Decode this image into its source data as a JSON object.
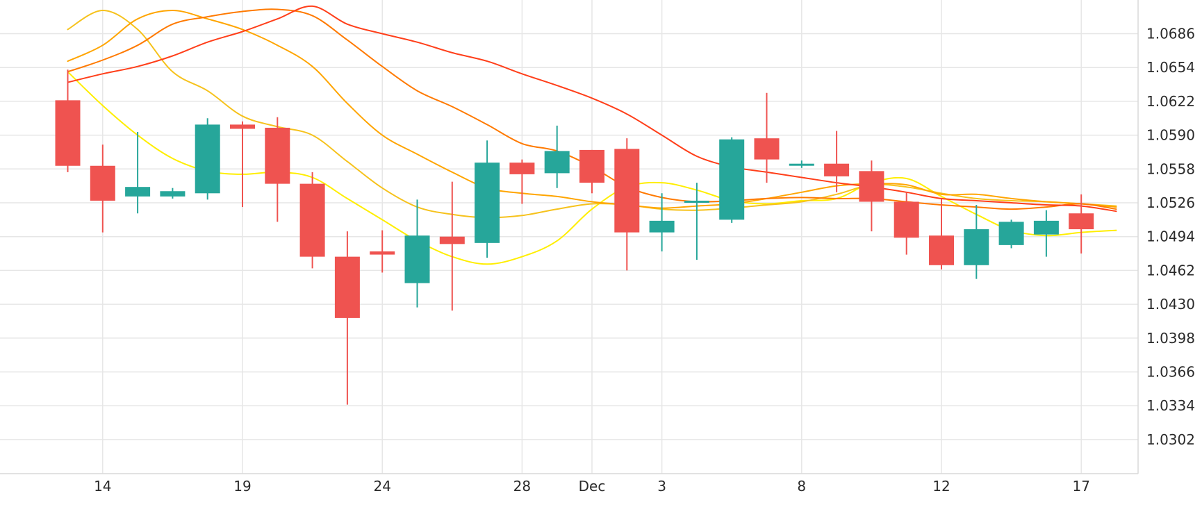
{
  "chart_data": {
    "type": "candlestick",
    "title": "",
    "xlabel": "",
    "ylabel": "",
    "ylim": [
      1.028,
      1.0712
    ],
    "y_ticks": [
      "1.0686",
      "1.0654",
      "1.0622",
      "1.0590",
      "1.0558",
      "1.0526",
      "1.0494",
      "1.0462",
      "1.0430",
      "1.0398",
      "1.0366",
      "1.0334",
      "1.0302"
    ],
    "x_ticks": [
      {
        "label": "14",
        "index": 1
      },
      {
        "label": "19",
        "index": 5
      },
      {
        "label": "24",
        "index": 9
      },
      {
        "label": "28",
        "index": 13
      },
      {
        "label": "Dec",
        "index": 15
      },
      {
        "label": "3",
        "index": 17
      },
      {
        "label": "8",
        "index": 21
      },
      {
        "label": "12",
        "index": 25
      },
      {
        "label": "17",
        "index": 29
      }
    ],
    "colors": {
      "up": "#26a69a",
      "down": "#ef5350",
      "grid": "#e6e6e6"
    },
    "candles": [
      {
        "open": 1.0623,
        "high": 1.0652,
        "low": 1.0555,
        "close": 1.0561
      },
      {
        "open": 1.0561,
        "high": 1.0581,
        "low": 1.0498,
        "close": 1.0528
      },
      {
        "open": 1.0532,
        "high": 1.0593,
        "low": 1.0516,
        "close": 1.0541
      },
      {
        "open": 1.0532,
        "high": 1.054,
        "low": 1.053,
        "close": 1.0537
      },
      {
        "open": 1.0535,
        "high": 1.0606,
        "low": 1.0529,
        "close": 1.06
      },
      {
        "open": 1.06,
        "high": 1.0603,
        "low": 1.0522,
        "close": 1.0596
      },
      {
        "open": 1.0597,
        "high": 1.0607,
        "low": 1.0508,
        "close": 1.0544
      },
      {
        "open": 1.0544,
        "high": 1.0555,
        "low": 1.0464,
        "close": 1.0475
      },
      {
        "open": 1.0475,
        "high": 1.0499,
        "low": 1.0335,
        "close": 1.0417
      },
      {
        "open": 1.048,
        "high": 1.05,
        "low": 1.046,
        "close": 1.0477
      },
      {
        "open": 1.045,
        "high": 1.0529,
        "low": 1.0427,
        "close": 1.0495
      },
      {
        "open": 1.0494,
        "high": 1.0546,
        "low": 1.0424,
        "close": 1.0487
      },
      {
        "open": 1.0488,
        "high": 1.0585,
        "low": 1.0474,
        "close": 1.0564
      },
      {
        "open": 1.0564,
        "high": 1.0567,
        "low": 1.0525,
        "close": 1.0553
      },
      {
        "open": 1.0554,
        "high": 1.0599,
        "low": 1.054,
        "close": 1.0575
      },
      {
        "open": 1.0576,
        "high": 1.0576,
        "low": 1.0535,
        "close": 1.0545
      },
      {
        "open": 1.0577,
        "high": 1.0587,
        "low": 1.0462,
        "close": 1.0498
      },
      {
        "open": 1.0498,
        "high": 1.0535,
        "low": 1.048,
        "close": 1.0509
      },
      {
        "open": 1.0527,
        "high": 1.0545,
        "low": 1.0472,
        "close": 1.0528
      },
      {
        "open": 1.051,
        "high": 1.0588,
        "low": 1.0507,
        "close": 1.0586
      },
      {
        "open": 1.0587,
        "high": 1.063,
        "low": 1.0545,
        "close": 1.0567
      },
      {
        "open": 1.0562,
        "high": 1.0566,
        "low": 1.0559,
        "close": 1.0563
      },
      {
        "open": 1.0563,
        "high": 1.0594,
        "low": 1.0536,
        "close": 1.0551
      },
      {
        "open": 1.0556,
        "high": 1.0566,
        "low": 1.0499,
        "close": 1.0527
      },
      {
        "open": 1.0527,
        "high": 1.0536,
        "low": 1.0477,
        "close": 1.0493
      },
      {
        "open": 1.0495,
        "high": 1.053,
        "low": 1.0463,
        "close": 1.0467
      },
      {
        "open": 1.0467,
        "high": 1.0524,
        "low": 1.0454,
        "close": 1.0501
      },
      {
        "open": 1.0486,
        "high": 1.051,
        "low": 1.0483,
        "close": 1.0508
      },
      {
        "open": 1.0496,
        "high": 1.0519,
        "low": 1.0475,
        "close": 1.0509
      },
      {
        "open": 1.0516,
        "high": 1.0534,
        "low": 1.0478,
        "close": 1.0501
      }
    ],
    "series": [
      {
        "color": "#ffee00",
        "values": [
          1.065,
          1.0618,
          1.059,
          1.0568,
          1.0556,
          1.0553,
          1.0555,
          1.055,
          1.053,
          1.051,
          1.049,
          1.0475,
          1.0468,
          1.0475,
          1.049,
          1.052,
          1.0541,
          1.0545,
          1.0538,
          1.0528,
          1.0525,
          1.0528,
          1.053,
          1.0545,
          1.0549,
          1.0532,
          1.0515,
          1.05,
          1.0495,
          1.0498,
          1.05
        ]
      },
      {
        "color": "#f6c21c",
        "values": [
          1.069,
          1.0708,
          1.069,
          1.065,
          1.0632,
          1.0608,
          1.0598,
          1.059,
          1.0565,
          1.054,
          1.0522,
          1.0515,
          1.0512,
          1.0514,
          1.052,
          1.0525,
          1.0524,
          1.052,
          1.0519,
          1.0521,
          1.0524,
          1.0527,
          1.0534,
          1.0543,
          1.0541,
          1.0535,
          1.053,
          1.0528,
          1.0527,
          1.0525,
          1.0523
        ]
      },
      {
        "color": "#ffa500",
        "values": [
          1.066,
          1.0675,
          1.07,
          1.0708,
          1.07,
          1.069,
          1.0675,
          1.0655,
          1.062,
          1.059,
          1.0572,
          1.0555,
          1.054,
          1.0535,
          1.0532,
          1.0527,
          1.0524,
          1.0521,
          1.0523,
          1.0525,
          1.053,
          1.0536,
          1.0542,
          1.0544,
          1.0543,
          1.0534,
          1.0534,
          1.053,
          1.0527,
          1.0525,
          1.0522
        ]
      },
      {
        "color": "#ff7a00",
        "values": [
          1.065,
          1.0661,
          1.0675,
          1.0695,
          1.0702,
          1.0707,
          1.0709,
          1.0703,
          1.068,
          1.0655,
          1.0632,
          1.0617,
          1.06,
          1.0582,
          1.0575,
          1.056,
          1.0541,
          1.0531,
          1.0527,
          1.0528,
          1.053,
          1.0531,
          1.053,
          1.053,
          1.0527,
          1.0524,
          1.0522,
          1.052,
          1.0522,
          1.0525,
          1.052
        ]
      },
      {
        "color": "#ff3f1a",
        "values": [
          1.064,
          1.0648,
          1.0655,
          1.0665,
          1.0678,
          1.0688,
          1.07,
          1.0712,
          1.0695,
          1.0686,
          1.0678,
          1.0668,
          1.066,
          1.0648,
          1.0637,
          1.0625,
          1.061,
          1.059,
          1.057,
          1.056,
          1.0555,
          1.055,
          1.0545,
          1.0541,
          1.0536,
          1.053,
          1.0528,
          1.0526,
          1.0524,
          1.0523,
          1.0518
        ]
      }
    ]
  }
}
